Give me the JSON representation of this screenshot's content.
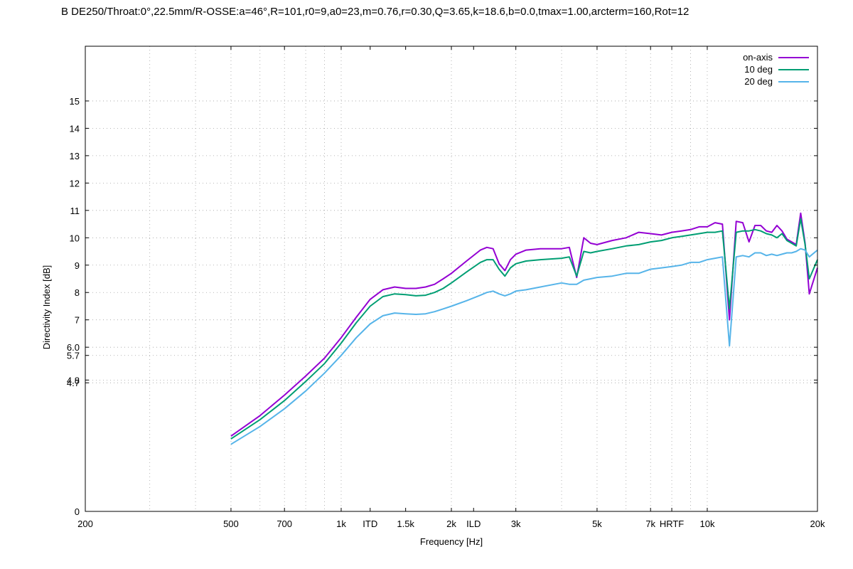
{
  "chart_data": {
    "type": "line",
    "title": "B   DE250/Throat:0°,22.5mm/R-OSSE:a=46°,R=101,r0=9,a0=23,m=0.76,r=0.30,Q=3.65,k=18.6,b=0.0,tmax=1.00,arcterm=160,Rot=12",
    "xlabel": "Frequency [Hz]",
    "ylabel": "Directivity Index [dB]",
    "xscale": "log",
    "xlim": [
      200,
      20000
    ],
    "ylim": [
      0,
      17
    ],
    "grid": true,
    "legend_position": "top-right",
    "x_ticks": [
      {
        "value": 200,
        "label": "200"
      },
      {
        "value": 500,
        "label": "500"
      },
      {
        "value": 700,
        "label": "700"
      },
      {
        "value": 1000,
        "label": "1k"
      },
      {
        "value": 1200,
        "label": "ITD"
      },
      {
        "value": 1500,
        "label": "1.5k"
      },
      {
        "value": 2000,
        "label": "2k"
      },
      {
        "value": 2300,
        "label": "ILD"
      },
      {
        "value": 3000,
        "label": "3k"
      },
      {
        "value": 5000,
        "label": "5k"
      },
      {
        "value": 7000,
        "label": "7k"
      },
      {
        "value": 8000,
        "label": "HRTF"
      },
      {
        "value": 10000,
        "label": "10k"
      },
      {
        "value": 20000,
        "label": "20k"
      }
    ],
    "y_ticks": [
      {
        "value": 0,
        "label": "0"
      },
      {
        "value": 4.7,
        "label": "4.7"
      },
      {
        "value": 4.8,
        "label": "4.8"
      },
      {
        "value": 5.7,
        "label": "5.7"
      },
      {
        "value": 6.0,
        "label": "6.0"
      },
      {
        "value": 7,
        "label": "7"
      },
      {
        "value": 8,
        "label": "8"
      },
      {
        "value": 9,
        "label": "9"
      },
      {
        "value": 10,
        "label": "10"
      },
      {
        "value": 11,
        "label": "11"
      },
      {
        "value": 12,
        "label": "12"
      },
      {
        "value": 13,
        "label": "13"
      },
      {
        "value": 14,
        "label": "14"
      },
      {
        "value": 15,
        "label": "15"
      }
    ],
    "series": [
      {
        "name": "on-axis",
        "color": "#9400d3",
        "points": [
          [
            500,
            2.75
          ],
          [
            600,
            3.5
          ],
          [
            700,
            4.25
          ],
          [
            800,
            4.95
          ],
          [
            900,
            5.6
          ],
          [
            1000,
            6.35
          ],
          [
            1100,
            7.1
          ],
          [
            1200,
            7.75
          ],
          [
            1300,
            8.1
          ],
          [
            1400,
            8.2
          ],
          [
            1500,
            8.15
          ],
          [
            1600,
            8.15
          ],
          [
            1700,
            8.2
          ],
          [
            1800,
            8.3
          ],
          [
            1900,
            8.5
          ],
          [
            2000,
            8.7
          ],
          [
            2200,
            9.15
          ],
          [
            2400,
            9.55
          ],
          [
            2500,
            9.65
          ],
          [
            2600,
            9.6
          ],
          [
            2700,
            9.05
          ],
          [
            2800,
            8.8
          ],
          [
            2900,
            9.2
          ],
          [
            3000,
            9.4
          ],
          [
            3200,
            9.55
          ],
          [
            3500,
            9.6
          ],
          [
            4000,
            9.6
          ],
          [
            4200,
            9.65
          ],
          [
            4400,
            8.55
          ],
          [
            4600,
            10.0
          ],
          [
            4800,
            9.8
          ],
          [
            5000,
            9.75
          ],
          [
            5500,
            9.9
          ],
          [
            6000,
            10.0
          ],
          [
            6500,
            10.2
          ],
          [
            7000,
            10.15
          ],
          [
            7500,
            10.1
          ],
          [
            8000,
            10.2
          ],
          [
            8500,
            10.25
          ],
          [
            9000,
            10.3
          ],
          [
            9500,
            10.4
          ],
          [
            10000,
            10.4
          ],
          [
            10500,
            10.55
          ],
          [
            11000,
            10.5
          ],
          [
            11500,
            7.0
          ],
          [
            12000,
            10.6
          ],
          [
            12500,
            10.55
          ],
          [
            13000,
            9.85
          ],
          [
            13500,
            10.45
          ],
          [
            14000,
            10.45
          ],
          [
            14500,
            10.25
          ],
          [
            15000,
            10.2
          ],
          [
            15500,
            10.45
          ],
          [
            16000,
            10.25
          ],
          [
            16500,
            9.95
          ],
          [
            17000,
            9.85
          ],
          [
            17500,
            9.75
          ],
          [
            18000,
            10.9
          ],
          [
            18500,
            9.8
          ],
          [
            19000,
            7.95
          ],
          [
            20000,
            8.9
          ]
        ]
      },
      {
        "name": "10 deg",
        "color": "#009e73",
        "points": [
          [
            500,
            2.65
          ],
          [
            600,
            3.35
          ],
          [
            700,
            4.05
          ],
          [
            800,
            4.75
          ],
          [
            900,
            5.4
          ],
          [
            1000,
            6.15
          ],
          [
            1100,
            6.9
          ],
          [
            1200,
            7.5
          ],
          [
            1300,
            7.85
          ],
          [
            1400,
            7.95
          ],
          [
            1500,
            7.92
          ],
          [
            1600,
            7.88
          ],
          [
            1700,
            7.9
          ],
          [
            1800,
            8.0
          ],
          [
            1900,
            8.15
          ],
          [
            2000,
            8.35
          ],
          [
            2200,
            8.75
          ],
          [
            2400,
            9.1
          ],
          [
            2500,
            9.2
          ],
          [
            2600,
            9.2
          ],
          [
            2700,
            8.85
          ],
          [
            2800,
            8.6
          ],
          [
            2900,
            8.9
          ],
          [
            3000,
            9.05
          ],
          [
            3200,
            9.15
          ],
          [
            3500,
            9.2
          ],
          [
            4000,
            9.25
          ],
          [
            4200,
            9.3
          ],
          [
            4400,
            8.6
          ],
          [
            4600,
            9.5
          ],
          [
            4800,
            9.45
          ],
          [
            5000,
            9.5
          ],
          [
            5500,
            9.6
          ],
          [
            6000,
            9.7
          ],
          [
            6500,
            9.75
          ],
          [
            7000,
            9.85
          ],
          [
            7500,
            9.9
          ],
          [
            8000,
            10.0
          ],
          [
            8500,
            10.05
          ],
          [
            9000,
            10.1
          ],
          [
            9500,
            10.15
          ],
          [
            10000,
            10.2
          ],
          [
            10500,
            10.2
          ],
          [
            11000,
            10.25
          ],
          [
            11500,
            7.4
          ],
          [
            12000,
            10.2
          ],
          [
            12500,
            10.25
          ],
          [
            13000,
            10.25
          ],
          [
            13500,
            10.3
          ],
          [
            14000,
            10.25
          ],
          [
            14500,
            10.15
          ],
          [
            15000,
            10.1
          ],
          [
            15500,
            10.0
          ],
          [
            16000,
            10.15
          ],
          [
            16500,
            9.9
          ],
          [
            17000,
            9.8
          ],
          [
            17500,
            9.7
          ],
          [
            18000,
            10.7
          ],
          [
            18500,
            9.75
          ],
          [
            19000,
            8.5
          ],
          [
            20000,
            9.2
          ]
        ]
      },
      {
        "name": "20 deg",
        "color": "#56b4e9",
        "points": [
          [
            500,
            2.45
          ],
          [
            600,
            3.1
          ],
          [
            700,
            3.75
          ],
          [
            800,
            4.4
          ],
          [
            900,
            5.05
          ],
          [
            1000,
            5.7
          ],
          [
            1100,
            6.35
          ],
          [
            1200,
            6.85
          ],
          [
            1300,
            7.15
          ],
          [
            1400,
            7.25
          ],
          [
            1500,
            7.22
          ],
          [
            1600,
            7.2
          ],
          [
            1700,
            7.22
          ],
          [
            1800,
            7.3
          ],
          [
            1900,
            7.4
          ],
          [
            2000,
            7.5
          ],
          [
            2200,
            7.7
          ],
          [
            2400,
            7.9
          ],
          [
            2500,
            8.0
          ],
          [
            2600,
            8.05
          ],
          [
            2700,
            7.95
          ],
          [
            2800,
            7.88
          ],
          [
            2900,
            7.95
          ],
          [
            3000,
            8.05
          ],
          [
            3200,
            8.1
          ],
          [
            3500,
            8.2
          ],
          [
            4000,
            8.35
          ],
          [
            4200,
            8.3
          ],
          [
            4400,
            8.3
          ],
          [
            4600,
            8.45
          ],
          [
            4800,
            8.5
          ],
          [
            5000,
            8.55
          ],
          [
            5500,
            8.6
          ],
          [
            6000,
            8.7
          ],
          [
            6500,
            8.7
          ],
          [
            7000,
            8.85
          ],
          [
            7500,
            8.9
          ],
          [
            8000,
            8.95
          ],
          [
            8500,
            9.0
          ],
          [
            9000,
            9.1
          ],
          [
            9500,
            9.1
          ],
          [
            10000,
            9.2
          ],
          [
            10500,
            9.25
          ],
          [
            11000,
            9.3
          ],
          [
            11500,
            6.05
          ],
          [
            12000,
            9.3
          ],
          [
            12500,
            9.35
          ],
          [
            13000,
            9.3
          ],
          [
            13500,
            9.45
          ],
          [
            14000,
            9.45
          ],
          [
            14500,
            9.35
          ],
          [
            15000,
            9.4
          ],
          [
            15500,
            9.35
          ],
          [
            16000,
            9.4
          ],
          [
            16500,
            9.45
          ],
          [
            17000,
            9.45
          ],
          [
            17500,
            9.5
          ],
          [
            18000,
            9.6
          ],
          [
            18500,
            9.55
          ],
          [
            19000,
            9.3
          ],
          [
            20000,
            9.55
          ]
        ]
      }
    ]
  }
}
